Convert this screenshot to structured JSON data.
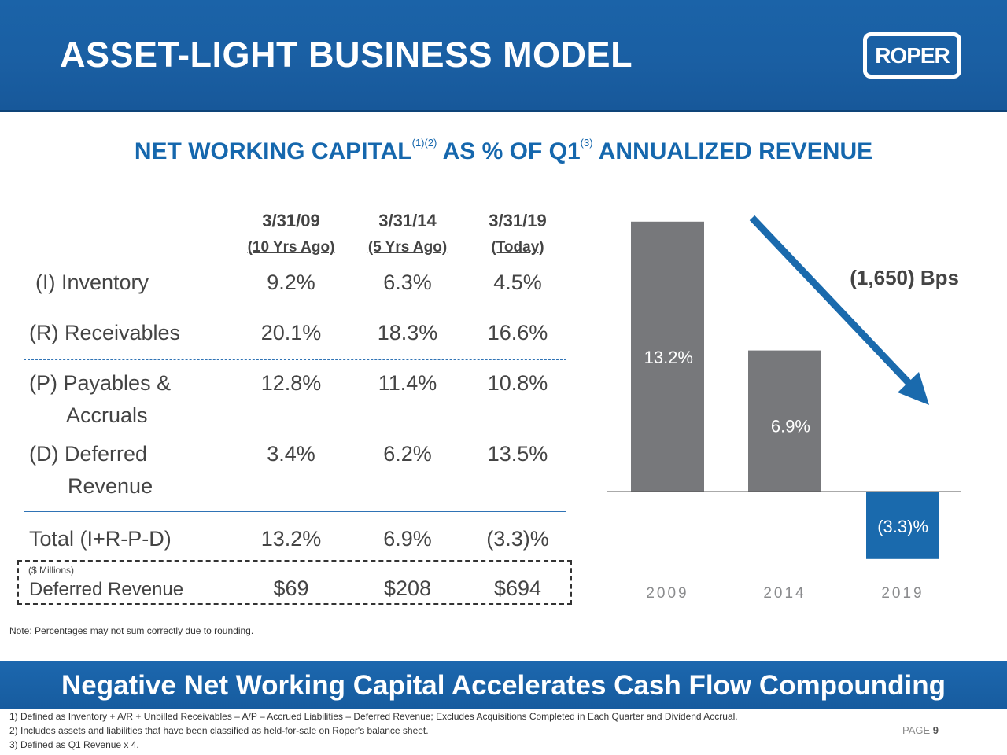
{
  "header": {
    "title": "ASSET-LIGHT BUSINESS MODEL",
    "logo_text": "ROPER"
  },
  "subtitle": {
    "part1": "NET WORKING CAPITAL",
    "sup1": "(1)(2)",
    "part2": " AS % OF Q1",
    "sup2": "(3)",
    "part3": " ANNUALIZED REVENUE"
  },
  "table": {
    "columns": [
      {
        "date": "3/31/09",
        "sub": "(10 Yrs Ago)"
      },
      {
        "date": "3/31/14",
        "sub": "(5 Yrs Ago)"
      },
      {
        "date": "3/31/19",
        "sub": "(Today)"
      }
    ],
    "rows": [
      {
        "label": "(I)  Inventory",
        "values": [
          "9.2%",
          "6.3%",
          "4.5%"
        ]
      },
      {
        "label": "(R) Receivables",
        "values": [
          "20.1%",
          "18.3%",
          "16.6%"
        ]
      },
      {
        "label": "(P) Payables &",
        "label2": "Accruals",
        "values": [
          "12.8%",
          "11.4%",
          "10.8%"
        ]
      },
      {
        "label": "(D) Deferred",
        "label2": "Revenue",
        "values": [
          "3.4%",
          "6.2%",
          "13.5%"
        ]
      }
    ],
    "total": {
      "label": "Total (I+R-P-D)",
      "values": [
        "13.2%",
        "6.9%",
        "(3.3)%"
      ]
    },
    "deferred_revenue": {
      "unit_note": "($ Millions)",
      "label": "Deferred Revenue",
      "values": [
        "$69",
        "$208",
        "$694"
      ]
    }
  },
  "note": "Note: Percentages may not sum correctly due to rounding.",
  "banner": "Negative Net Working Capital Accelerates Cash Flow Compounding",
  "footnotes": [
    "1) Defined as Inventory + A/R + Unbilled Receivables – A/P – Accrued Liabilities – Deferred Revenue; Excludes Acquisitions Completed in Each Quarter and Dividend Accrual.",
    "2) Includes assets and liabilities that have been classified as held-for-sale on Roper's balance sheet.",
    "3) Defined as Q1 Revenue x 4."
  ],
  "page": {
    "label": "PAGE",
    "number": "9"
  },
  "chart_data": {
    "type": "bar",
    "categories": [
      "2009",
      "2014",
      "2019"
    ],
    "values": [
      13.2,
      6.9,
      -3.3
    ],
    "labels": [
      "13.2%",
      "6.9%",
      "(3.3)%"
    ],
    "colors": [
      "#77787b",
      "#77787b",
      "#1a6aad"
    ],
    "ylim": [
      -3.3,
      13.2
    ],
    "annotation": "(1,650) Bps",
    "annotation_color": "#1a6aad"
  }
}
